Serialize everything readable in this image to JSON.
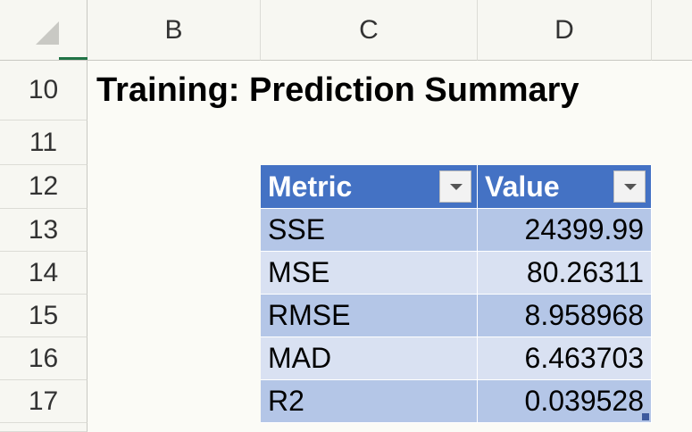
{
  "sheet": {
    "column_headers": [
      "B",
      "C",
      "D"
    ],
    "row_headers": [
      10,
      11,
      12,
      13,
      14,
      15,
      16,
      17
    ],
    "title": "Training: Prediction Summary",
    "table": {
      "header": [
        "Metric",
        "Value"
      ],
      "rows": [
        [
          "SSE",
          24399.99
        ],
        [
          "MSE",
          80.26311
        ],
        [
          "RMSE",
          8.958968
        ],
        [
          "MAD",
          6.463703
        ],
        [
          "R2",
          0.039528
        ]
      ]
    }
  }
}
